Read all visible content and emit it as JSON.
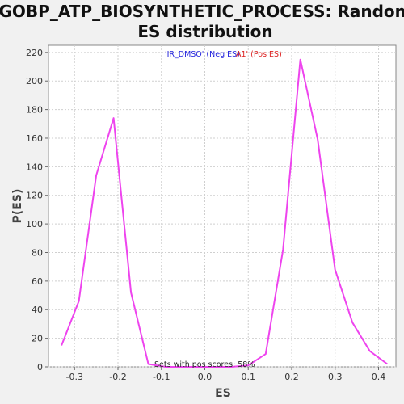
{
  "chart_data": {
    "type": "line",
    "title_line1": "GOBP_ATP_BIOSYNTHETIC_PROCESS: Random",
    "title_line2": "ES distribution",
    "xlabel": "ES",
    "ylabel": "P(ES)",
    "xlim": [
      -0.36,
      0.44
    ],
    "ylim": [
      0,
      225
    ],
    "xticks": [
      -0.3,
      -0.2,
      -0.1,
      0.0,
      0.1,
      0.2,
      0.3,
      0.4
    ],
    "yticks": [
      0,
      20,
      40,
      60,
      80,
      100,
      120,
      140,
      160,
      180,
      200,
      220
    ],
    "grid": true,
    "series": [
      {
        "color": "#ee44ee",
        "x": [
          -0.33,
          -0.29,
          -0.25,
          -0.21,
          -0.17,
          -0.13,
          -0.09,
          -0.05,
          -0.01,
          0.03,
          0.06,
          0.1,
          0.14,
          0.18,
          0.22,
          0.26,
          0.3,
          0.34,
          0.38,
          0.42
        ],
        "y": [
          15,
          46,
          134,
          174,
          52,
          2,
          0,
          0,
          0,
          0,
          0,
          1,
          9,
          82,
          215,
          159,
          68,
          31,
          11,
          2
        ]
      }
    ],
    "legend": {
      "neg_label": "'IR_DMSO' (Neg ES)",
      "pos_label": "A1' (Pos ES)",
      "neg_color": "#2222dd",
      "pos_color": "#dd2222"
    },
    "annotation": "Sets with pos scores: 58%"
  }
}
